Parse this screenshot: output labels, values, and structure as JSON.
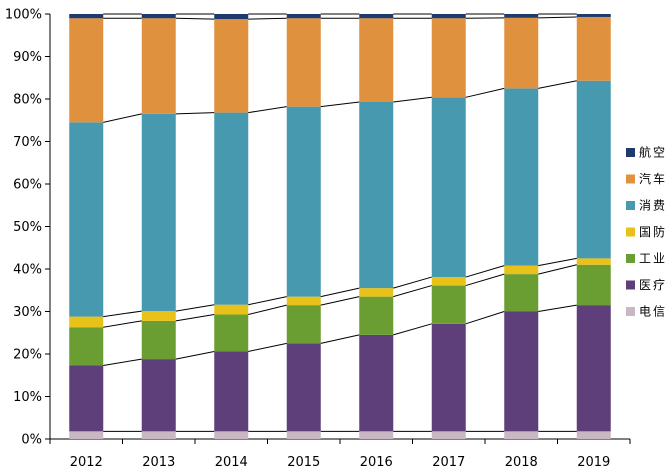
{
  "chart_data": {
    "type": "bar",
    "stacked": true,
    "categories": [
      "2012",
      "2013",
      "2014",
      "2015",
      "2016",
      "2017",
      "2018",
      "2019"
    ],
    "series": [
      {
        "name": "电信",
        "color": "#c9b8c4",
        "values": [
          1.8,
          1.8,
          1.8,
          1.8,
          1.8,
          1.8,
          1.8,
          1.8
        ]
      },
      {
        "name": "医疗",
        "color": "#5e3f7a",
        "values": [
          15.5,
          17.0,
          18.8,
          20.7,
          22.7,
          25.3,
          28.2,
          29.7
        ]
      },
      {
        "name": "工业",
        "color": "#6b9e32",
        "values": [
          9.0,
          9.0,
          8.7,
          9.0,
          9.0,
          9.0,
          8.8,
          9.5
        ]
      },
      {
        "name": "国防",
        "color": "#e8c219",
        "values": [
          2.5,
          2.3,
          2.3,
          2.0,
          2.0,
          2.0,
          2.0,
          1.5
        ]
      },
      {
        "name": "消费",
        "color": "#4799b0",
        "values": [
          45.7,
          46.4,
          45.2,
          44.7,
          43.8,
          42.3,
          41.7,
          41.8
        ]
      },
      {
        "name": "汽车",
        "color": "#e0913e",
        "values": [
          24.5,
          22.5,
          22.0,
          20.8,
          19.7,
          18.6,
          16.6,
          15.0
        ]
      },
      {
        "name": "航空",
        "color": "#1f3a6e",
        "values": [
          1.0,
          1.0,
          1.2,
          1.0,
          1.0,
          1.0,
          0.9,
          0.7
        ]
      }
    ],
    "legend_order": [
      "航空",
      "汽车",
      "消费",
      "国防",
      "工业",
      "医疗",
      "电信"
    ],
    "yticks": [
      "0%",
      "10%",
      "20%",
      "30%",
      "40%",
      "50%",
      "60%",
      "70%",
      "80%",
      "90%",
      "100%"
    ],
    "ylim": [
      0,
      100
    ],
    "title": "",
    "xlabel": "",
    "ylabel": "",
    "legend_position": "right",
    "connector_lines": true
  }
}
